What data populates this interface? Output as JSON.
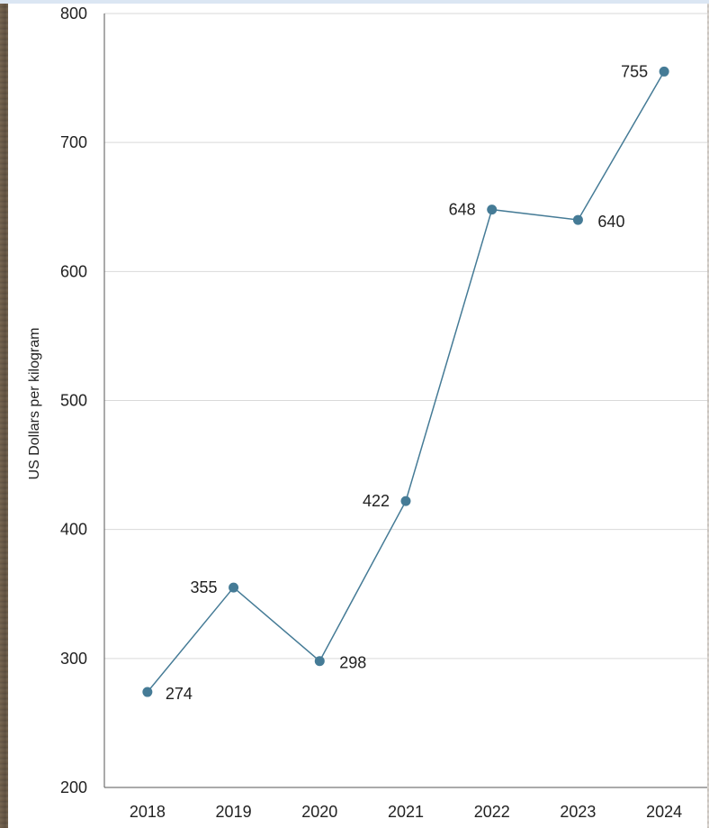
{
  "chart_data": {
    "type": "line",
    "title": "",
    "xlabel": "",
    "ylabel": "US Dollars per kilogram",
    "categories": [
      "2018",
      "2019",
      "2020",
      "2021",
      "2022",
      "2023",
      "2024"
    ],
    "values": [
      274,
      355,
      298,
      422,
      648,
      640,
      755
    ],
    "data_labels": [
      "274",
      "355",
      "298",
      "422",
      "648",
      "640",
      "755"
    ],
    "ylim": [
      200,
      800
    ],
    "yticks": [
      "200",
      "300",
      "400",
      "500",
      "600",
      "700",
      "800"
    ],
    "grid": "horizontal",
    "legend": "none",
    "colors": {
      "series": "#457b96",
      "grid": "#d9d9d9",
      "axis": "#555555"
    }
  }
}
